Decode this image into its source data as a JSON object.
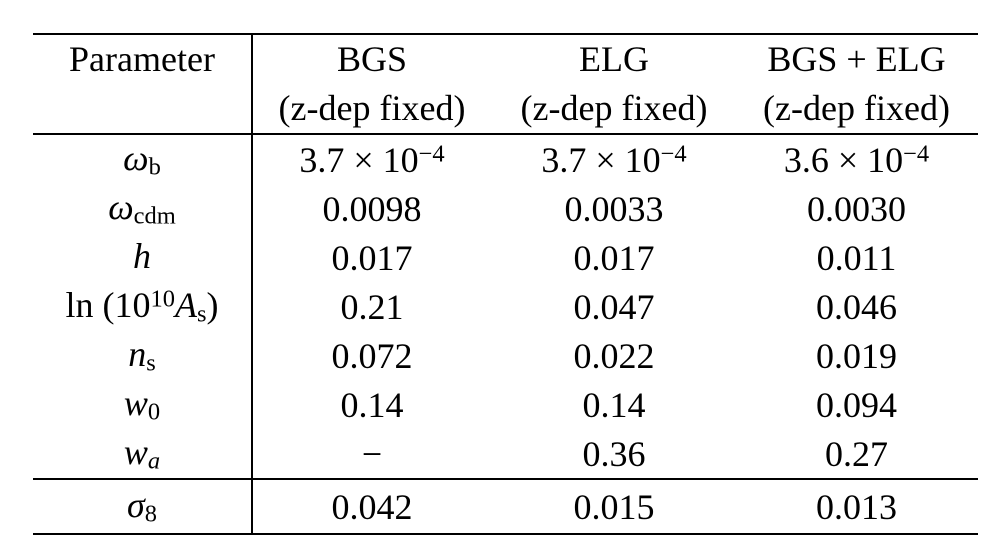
{
  "page": {
    "background": "#ffffff",
    "text_color": "#000000",
    "rule_color": "#000000"
  },
  "table": {
    "header": {
      "parameter_label": "Parameter",
      "columns": [
        {
          "name": "BGS",
          "note": "(z-dep fixed)"
        },
        {
          "name": "ELG",
          "note": "(z-dep fixed)"
        },
        {
          "name": "BGS + ELG",
          "note": "(z-dep fixed)"
        }
      ]
    },
    "rows": [
      {
        "param": {
          "pre": "",
          "presup": "",
          "sym": "ω",
          "sub": "b",
          "subi": "",
          "post": ""
        },
        "values": [
          {
            "main": "3.7 × 10",
            "sup": "−4"
          },
          {
            "main": "3.7 × 10",
            "sup": "−4"
          },
          {
            "main": "3.6 × 10",
            "sup": "−4"
          }
        ]
      },
      {
        "param": {
          "pre": "",
          "presup": "",
          "sym": "ω",
          "sub": "cdm",
          "subi": "",
          "post": ""
        },
        "values": [
          {
            "main": "0.0098",
            "sup": ""
          },
          {
            "main": "0.0033",
            "sup": ""
          },
          {
            "main": "0.0030",
            "sup": ""
          }
        ]
      },
      {
        "param": {
          "pre": "",
          "presup": "",
          "sym": "h",
          "sub": "",
          "subi": "",
          "post": ""
        },
        "values": [
          {
            "main": "0.017",
            "sup": ""
          },
          {
            "main": "0.017",
            "sup": ""
          },
          {
            "main": "0.011",
            "sup": ""
          }
        ]
      },
      {
        "param": {
          "pre": "ln (10",
          "presup": "10",
          "sym": "A",
          "sub": "s",
          "subi": "",
          "post": ")"
        },
        "values": [
          {
            "main": "0.21",
            "sup": ""
          },
          {
            "main": "0.047",
            "sup": ""
          },
          {
            "main": "0.046",
            "sup": ""
          }
        ]
      },
      {
        "param": {
          "pre": "",
          "presup": "",
          "sym": "n",
          "sub": "s",
          "subi": "",
          "post": ""
        },
        "values": [
          {
            "main": "0.072",
            "sup": ""
          },
          {
            "main": "0.022",
            "sup": ""
          },
          {
            "main": "0.019",
            "sup": ""
          }
        ]
      },
      {
        "param": {
          "pre": "",
          "presup": "",
          "sym": "w",
          "sub": "0",
          "subi": "",
          "post": ""
        },
        "values": [
          {
            "main": "0.14",
            "sup": ""
          },
          {
            "main": "0.14",
            "sup": ""
          },
          {
            "main": "0.094",
            "sup": ""
          }
        ]
      },
      {
        "param": {
          "pre": "",
          "presup": "",
          "sym": "w",
          "sub": "",
          "subi": "a",
          "post": ""
        },
        "values": [
          {
            "main": "−",
            "sup": ""
          },
          {
            "main": "0.36",
            "sup": ""
          },
          {
            "main": "0.27",
            "sup": ""
          }
        ]
      }
    ],
    "footer_row": {
      "param": {
        "pre": "",
        "presup": "",
        "sym": "σ",
        "sub": "8",
        "subi": "",
        "post": ""
      },
      "values": [
        {
          "main": "0.042",
          "sup": ""
        },
        {
          "main": "0.015",
          "sup": ""
        },
        {
          "main": "0.013",
          "sup": ""
        }
      ]
    }
  }
}
